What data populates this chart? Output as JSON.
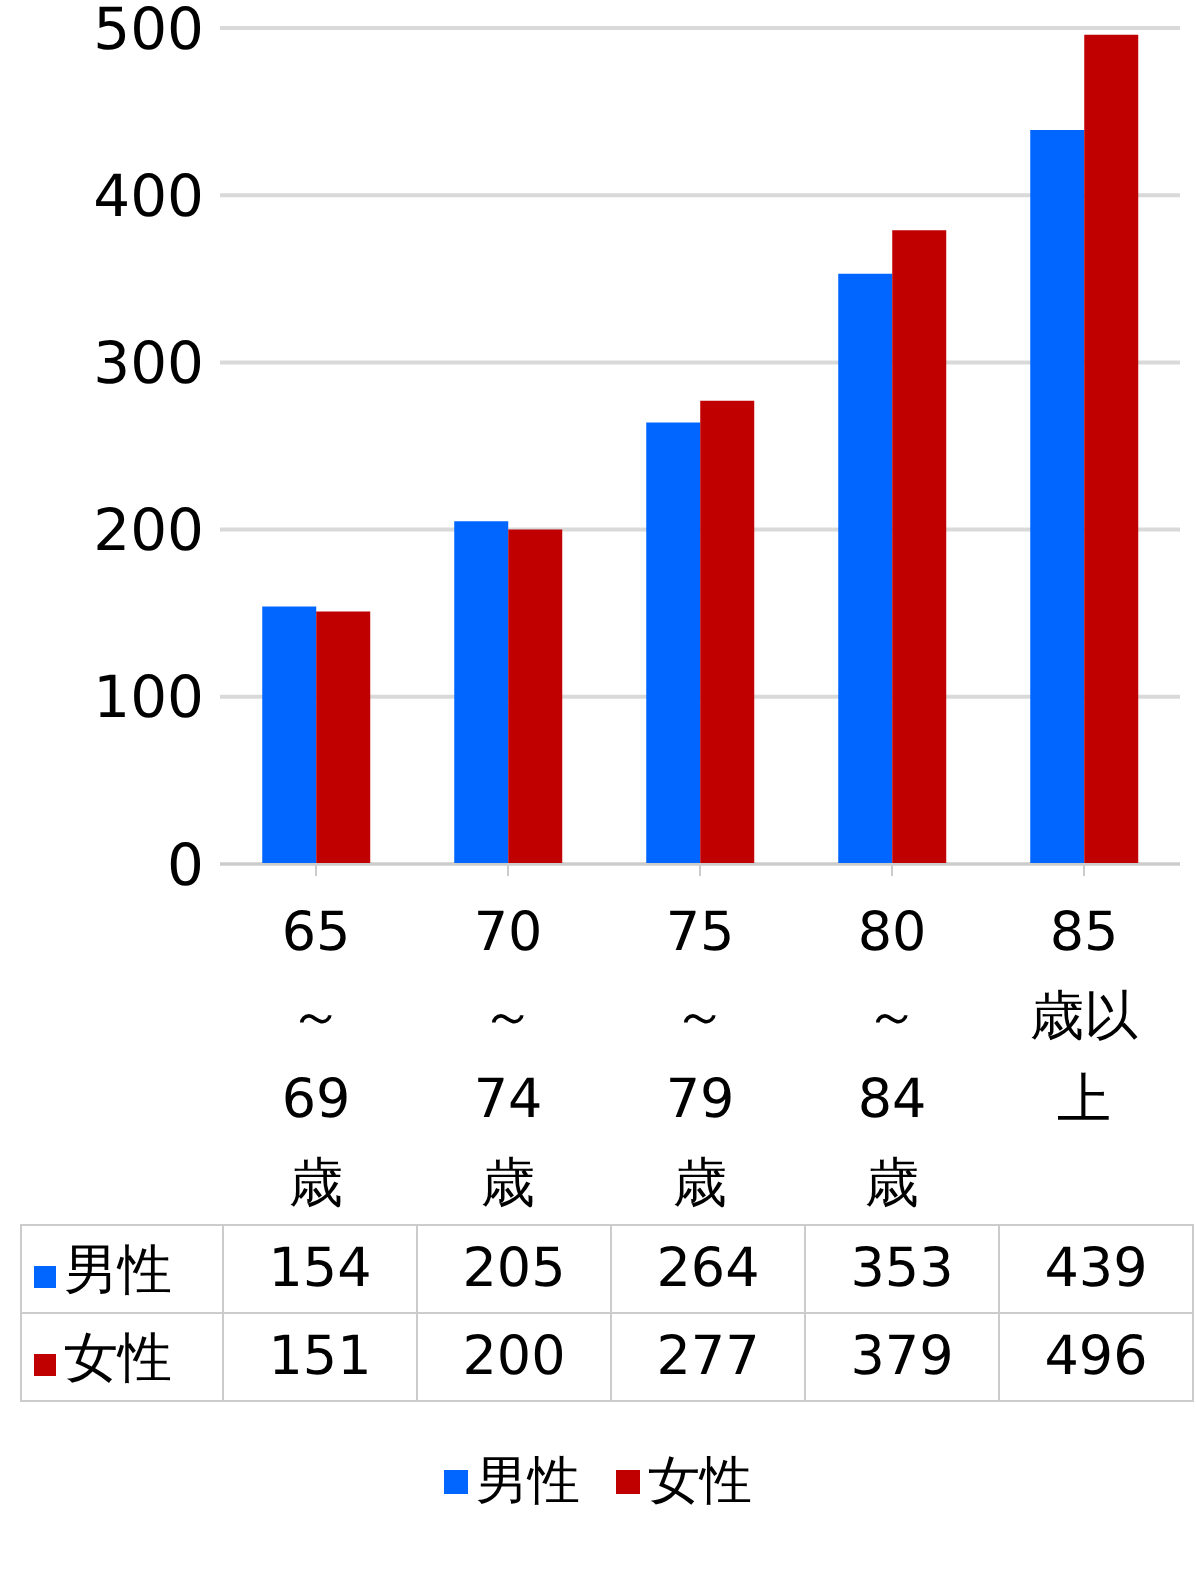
{
  "chart_data": {
    "type": "bar",
    "categories": [
      "65～69歳",
      "70～74歳",
      "75～79歳",
      "80～84歳",
      "85歳以上"
    ],
    "series": [
      {
        "name": "男性",
        "color": "#0066ff",
        "values": [
          154,
          205,
          264,
          353,
          439
        ]
      },
      {
        "name": "女性",
        "color": "#c00000",
        "values": [
          151,
          200,
          277,
          379,
          496
        ]
      }
    ],
    "ylim": [
      0,
      500
    ],
    "yticks": [
      0,
      100,
      200,
      300,
      400,
      500
    ],
    "grid": "y",
    "legend": "bottom",
    "data_labels": true
  }
}
